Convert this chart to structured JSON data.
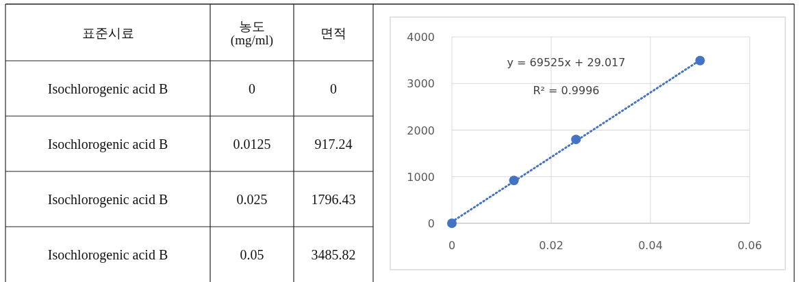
{
  "chart_data": [
    {
      "type": "other",
      "annotations": [
        "표준시료",
        "농도\n(mg/ml)",
        "면적",
        "Isochlorogenic acid B",
        "0",
        "0",
        "Isochlorogenic acid B",
        "0.0125",
        "917.24",
        "Isochlorogenic acid B",
        "0.025",
        "1796.43",
        "Isochlorogenic acid B",
        "0.05",
        "3485.82"
      ]
    },
    {
      "type": "scatter",
      "x": [
        0,
        0.0125,
        0.025,
        0.05
      ],
      "series": [
        {
          "type": "scatter",
          "color": "#4472c4",
          "values": [
            0,
            920,
            1800,
            3490
          ],
          "marker": "circle"
        },
        {
          "type": "line",
          "color": "#4472c4",
          "x": [
            0,
            0.05
          ],
          "values": [
            30,
            3500
          ],
          "line_style": "dotted",
          "marker": "none"
        }
      ],
      "annotations": [
        "y = 69525x + 29.017",
        "R² = 0.9996"
      ],
      "xlim": [
        0,
        0.06
      ],
      "xticks": [
        0,
        0.02,
        0.04,
        0.06
      ],
      "ylim": [
        0,
        4000
      ],
      "yticks": [
        0,
        1000,
        2000,
        3000,
        4000
      ],
      "grid": true
    }
  ]
}
